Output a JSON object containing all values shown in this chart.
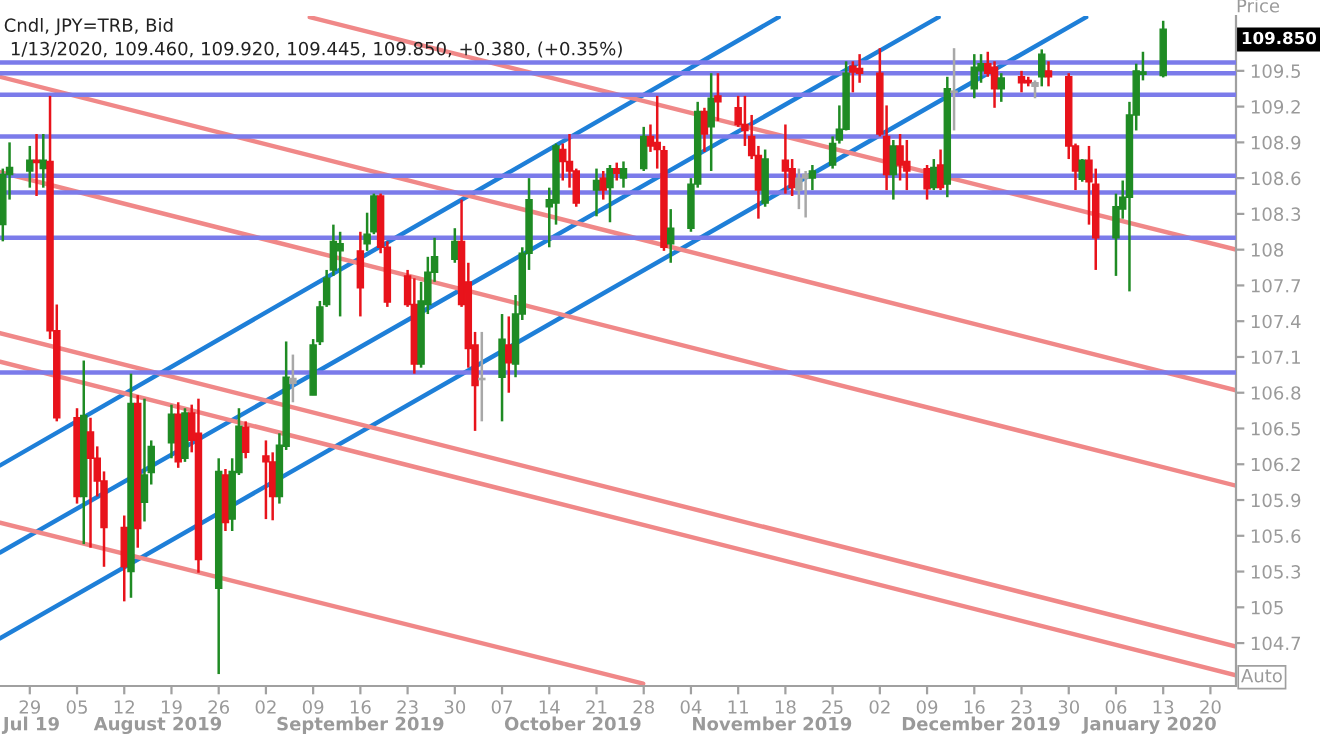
{
  "chart_data": {
    "type": "candlestick",
    "title": "Cndl, JPY=TRB, Bid",
    "subtitle": "1/13/2020, 109.460, 109.920, 109.445, 109.850, +0.380, (+0.35%)",
    "ylabel": "Price",
    "xlim": [
      "2019-07-24T14:00",
      "2020-01-23T19:00"
    ],
    "ylim": [
      104.34,
      109.96
    ],
    "yticks": [
      104.7,
      105,
      105.3,
      105.6,
      105.9,
      106.2,
      106.5,
      106.8,
      107.1,
      107.4,
      107.7,
      108,
      108.3,
      108.6,
      108.9,
      109.2,
      109.5
    ],
    "xticks": [
      {
        "value": "2019-07-29",
        "label": "29"
      },
      {
        "value": "2019-08-05",
        "label": "05"
      },
      {
        "value": "2019-08-12",
        "label": "12"
      },
      {
        "value": "2019-08-19",
        "label": "19"
      },
      {
        "value": "2019-08-26",
        "label": "26"
      },
      {
        "value": "2019-09-02",
        "label": "02"
      },
      {
        "value": "2019-09-09",
        "label": "09"
      },
      {
        "value": "2019-09-16",
        "label": "16"
      },
      {
        "value": "2019-09-23",
        "label": "23"
      },
      {
        "value": "2019-09-30",
        "label": "30"
      },
      {
        "value": "2019-10-07",
        "label": "07"
      },
      {
        "value": "2019-10-14",
        "label": "14"
      },
      {
        "value": "2019-10-21",
        "label": "21"
      },
      {
        "value": "2019-10-28",
        "label": "28"
      },
      {
        "value": "2019-11-04",
        "label": "04"
      },
      {
        "value": "2019-11-11",
        "label": "11"
      },
      {
        "value": "2019-11-18",
        "label": "18"
      },
      {
        "value": "2019-11-25",
        "label": "25"
      },
      {
        "value": "2019-12-02",
        "label": "02"
      },
      {
        "value": "2019-12-09",
        "label": "09"
      },
      {
        "value": "2019-12-16",
        "label": "16"
      },
      {
        "value": "2019-12-23",
        "label": "23"
      },
      {
        "value": "2019-12-30",
        "label": "30"
      },
      {
        "value": "2020-01-06",
        "label": "06"
      },
      {
        "value": "2020-01-13",
        "label": "13"
      },
      {
        "value": "2020-01-20",
        "label": "20"
      }
    ],
    "x2lim": [
      "2019-07-24T14:00",
      "2020-01-23T19:00"
    ],
    "x2ticks": [
      {
        "value": "2019-07-29T06:00",
        "label": "Jul 19"
      },
      {
        "value": "2019-08-17",
        "label": "August 2019"
      },
      {
        "value": "2019-09-16",
        "label": "September 2019"
      },
      {
        "value": "2019-10-17T12:00",
        "label": "October 2019"
      },
      {
        "value": "2019-11-16",
        "label": "November 2019"
      },
      {
        "value": "2019-12-17",
        "label": "December 2019"
      },
      {
        "value": "2020-01-11",
        "label": "January 2020"
      }
    ],
    "ref_lines": [
      {
        "axis": "y",
        "value": 109.57,
        "color": "#7b7bea"
      },
      {
        "axis": "y",
        "value": 109.48,
        "color": "#7b7bea"
      },
      {
        "axis": "y",
        "value": 109.3,
        "color": "#7b7bea"
      },
      {
        "axis": "y",
        "value": 108.95,
        "color": "#7b7bea"
      },
      {
        "axis": "y",
        "value": 108.62,
        "color": "#7b7bea"
      },
      {
        "axis": "y",
        "value": 108.48,
        "color": "#7b7bea"
      },
      {
        "axis": "y",
        "value": 108.1,
        "color": "#7b7bea"
      },
      {
        "axis": "y",
        "value": 106.97,
        "color": "#7b7bea"
      }
    ],
    "annotations": [
      "109.850",
      "Auto"
    ],
    "series": [
      {
        "type": "line",
        "color": "#1e7fd8",
        "x": [
          "2019-07-24T14:00",
          "2019-11-17"
        ],
        "values": [
          106.19,
          109.95
        ]
      },
      {
        "type": "line",
        "color": "#1e7fd8",
        "x": [
          "2019-07-24T14:00",
          "2019-12-10T17:00"
        ],
        "values": [
          105.46,
          109.95
        ]
      },
      {
        "type": "line",
        "color": "#1e7fd8",
        "x": [
          "2019-07-24T14:00",
          "2020-01-01T14:00"
        ],
        "values": [
          104.74,
          109.95
        ]
      },
      {
        "type": "line",
        "color": "#f08888",
        "x": [
          "2019-09-08T12:00",
          "2020-01-23T19:00"
        ],
        "values": [
          109.95,
          108.0
        ]
      },
      {
        "type": "line",
        "color": "#f08888",
        "x": [
          "2019-07-24T14:00",
          "2020-01-23T19:00"
        ],
        "values": [
          109.45,
          106.82
        ]
      },
      {
        "type": "line",
        "color": "#f08888",
        "x": [
          "2019-07-24T14:00",
          "2020-01-23T19:00"
        ],
        "values": [
          108.65,
          106.02
        ]
      },
      {
        "type": "line",
        "color": "#f08888",
        "x": [
          "2019-07-24T14:00",
          "2020-01-23T19:00"
        ],
        "values": [
          107.3,
          104.67
        ]
      },
      {
        "type": "line",
        "color": "#f08888",
        "x": [
          "2019-07-24T14:00",
          "2020-01-23T19:00"
        ],
        "values": [
          107.06,
          104.43
        ]
      },
      {
        "type": "line",
        "color": "#f08888",
        "x": [
          "2019-07-24T14:00",
          "2019-10-27T22:00"
        ],
        "values": [
          105.71,
          104.36
        ]
      },
      {
        "type": "candlestick",
        "x": [
          "2019-07-25",
          "2019-07-26",
          "2019-07-29",
          "2019-07-30",
          "2019-07-31",
          "2019-08-01",
          "2019-08-02",
          "2019-08-05",
          "2019-08-06",
          "2019-08-07",
          "2019-08-08",
          "2019-08-09",
          "2019-08-12",
          "2019-08-13",
          "2019-08-14",
          "2019-08-15",
          "2019-08-16",
          "2019-08-19",
          "2019-08-20",
          "2019-08-21",
          "2019-08-22",
          "2019-08-23",
          "2019-08-26",
          "2019-08-27",
          "2019-08-28",
          "2019-08-29",
          "2019-08-30",
          "2019-09-02",
          "2019-09-03",
          "2019-09-04",
          "2019-09-05",
          "2019-09-06",
          "2019-09-09",
          "2019-09-10",
          "2019-09-11",
          "2019-09-12",
          "2019-09-13",
          "2019-09-16",
          "2019-09-17",
          "2019-09-18",
          "2019-09-19",
          "2019-09-20",
          "2019-09-23",
          "2019-09-24",
          "2019-09-25",
          "2019-09-26",
          "2019-09-27",
          "2019-09-30",
          "2019-10-01",
          "2019-10-02",
          "2019-10-03",
          "2019-10-04",
          "2019-10-07",
          "2019-10-08",
          "2019-10-09",
          "2019-10-10",
          "2019-10-11",
          "2019-10-14",
          "2019-10-15",
          "2019-10-16",
          "2019-10-17",
          "2019-10-18",
          "2019-10-21",
          "2019-10-22",
          "2019-10-23",
          "2019-10-24",
          "2019-10-25",
          "2019-10-28",
          "2019-10-29",
          "2019-10-30",
          "2019-10-31",
          "2019-11-01",
          "2019-11-04",
          "2019-11-05",
          "2019-11-06",
          "2019-11-07",
          "2019-11-08",
          "2019-11-11",
          "2019-11-12",
          "2019-11-13",
          "2019-11-14",
          "2019-11-15",
          "2019-11-18",
          "2019-11-19",
          "2019-11-20",
          "2019-11-21",
          "2019-11-22",
          "2019-11-25",
          "2019-11-26",
          "2019-11-27",
          "2019-11-28",
          "2019-11-29",
          "2019-12-02",
          "2019-12-03",
          "2019-12-04",
          "2019-12-05",
          "2019-12-06",
          "2019-12-09",
          "2019-12-10",
          "2019-12-11",
          "2019-12-12",
          "2019-12-13",
          "2019-12-16",
          "2019-12-17",
          "2019-12-18",
          "2019-12-19",
          "2019-12-20",
          "2019-12-23",
          "2019-12-24",
          "2019-12-25",
          "2019-12-26",
          "2019-12-27",
          "2019-12-30",
          "2019-12-31",
          "2020-01-01",
          "2020-01-02",
          "2020-01-03",
          "2020-01-06",
          "2020-01-07",
          "2020-01-08",
          "2020-01-09",
          "2020-01-10",
          "2020-01-13"
        ],
        "ohlc": [
          [
            108.21,
            108.68,
            108.07,
            108.63
          ],
          [
            108.63,
            108.9,
            108.42,
            108.69
          ],
          [
            108.66,
            108.87,
            108.52,
            108.75
          ],
          [
            108.75,
            108.97,
            108.45,
            108.73
          ],
          [
            108.68,
            108.97,
            108.52,
            108.75
          ],
          [
            108.74,
            109.29,
            107.25,
            107.32
          ],
          [
            107.32,
            107.54,
            106.56,
            106.59
          ],
          [
            106.59,
            106.67,
            105.87,
            105.93
          ],
          [
            105.93,
            107.07,
            105.53,
            106.61
          ],
          [
            106.47,
            106.59,
            105.5,
            106.25
          ],
          [
            106.25,
            106.35,
            105.93,
            106.06
          ],
          [
            106.06,
            106.14,
            105.34,
            105.67
          ],
          [
            105.67,
            105.77,
            105.05,
            105.34
          ],
          [
            105.3,
            106.96,
            105.08,
            106.71
          ],
          [
            106.71,
            106.78,
            105.5,
            105.66
          ],
          [
            105.88,
            106.75,
            105.72,
            106.11
          ],
          [
            106.13,
            106.4,
            106.03,
            106.35
          ],
          [
            106.38,
            106.7,
            106.25,
            106.62
          ],
          [
            106.62,
            106.72,
            106.17,
            106.22
          ],
          [
            106.25,
            106.67,
            106.22,
            106.63
          ],
          [
            106.63,
            106.7,
            106.3,
            106.4
          ],
          [
            106.46,
            106.75,
            105.29,
            105.4
          ],
          [
            105.16,
            106.25,
            104.44,
            106.14
          ],
          [
            106.11,
            106.16,
            105.64,
            105.71
          ],
          [
            105.74,
            106.25,
            105.64,
            106.14
          ],
          [
            106.13,
            106.67,
            106.11,
            106.52
          ],
          [
            106.51,
            106.56,
            106.25,
            106.3
          ],
          [
            106.27,
            106.4,
            105.74,
            106.22
          ],
          [
            106.22,
            106.3,
            105.73,
            105.93
          ],
          [
            105.93,
            106.46,
            105.87,
            106.36
          ],
          [
            106.35,
            107.23,
            106.32,
            106.93
          ],
          [
            106.88,
            107.12,
            106.72,
            106.92
          ],
          [
            106.78,
            107.25,
            106.78,
            107.2
          ],
          [
            107.23,
            107.57,
            107.2,
            107.52
          ],
          [
            107.54,
            107.83,
            107.52,
            107.76
          ],
          [
            107.83,
            108.21,
            107.78,
            108.07
          ],
          [
            107.99,
            108.15,
            107.44,
            108.05
          ],
          [
            107.99,
            108.15,
            107.44,
            107.68
          ],
          [
            108.05,
            108.31,
            107.99,
            108.13
          ],
          [
            108.15,
            108.47,
            108.13,
            108.45
          ],
          [
            108.45,
            108.47,
            107.97,
            108.02
          ],
          [
            108.02,
            108.07,
            107.52,
            107.56
          ],
          [
            107.78,
            107.83,
            107.52,
            107.54
          ],
          [
            107.54,
            107.76,
            106.96,
            107.04
          ],
          [
            107.04,
            107.73,
            107.01,
            107.57
          ],
          [
            107.54,
            107.94,
            107.46,
            107.81
          ],
          [
            107.81,
            108.1,
            107.73,
            107.94
          ],
          [
            107.92,
            108.18,
            107.89,
            108.07
          ],
          [
            108.07,
            108.42,
            107.52,
            107.54
          ],
          [
            107.73,
            107.89,
            107.01,
            107.17
          ],
          [
            107.2,
            107.31,
            106.48,
            106.86
          ],
          [
            106.92,
            107.31,
            106.56,
            106.91
          ],
          [
            106.93,
            107.46,
            106.56,
            107.25
          ],
          [
            107.2,
            107.44,
            106.8,
            107.05
          ],
          [
            107.04,
            107.62,
            106.93,
            107.46
          ],
          [
            107.46,
            108.02,
            107.41,
            107.97
          ],
          [
            107.97,
            108.6,
            107.83,
            108.42
          ],
          [
            108.36,
            108.52,
            108.02,
            108.42
          ],
          [
            108.39,
            108.89,
            108.21,
            108.87
          ],
          [
            108.84,
            108.89,
            108.58,
            108.74
          ],
          [
            108.74,
            108.97,
            108.52,
            108.66
          ],
          [
            108.66,
            108.68,
            108.36,
            108.39
          ],
          [
            108.5,
            108.68,
            108.28,
            108.58
          ],
          [
            108.6,
            108.66,
            108.42,
            108.5
          ],
          [
            108.52,
            108.71,
            108.23,
            108.68
          ],
          [
            108.68,
            108.73,
            108.58,
            108.64
          ],
          [
            108.6,
            108.74,
            108.52,
            108.68
          ],
          [
            108.68,
            109.03,
            108.66,
            108.95
          ],
          [
            108.95,
            109.05,
            108.82,
            108.87
          ],
          [
            108.9,
            109.29,
            108.68,
            108.84
          ],
          [
            108.83,
            108.87,
            107.99,
            108.02
          ],
          [
            108.05,
            108.34,
            107.89,
            108.18
          ],
          [
            108.18,
            108.6,
            108.15,
            108.55
          ],
          [
            108.55,
            109.24,
            108.52,
            109.16
          ],
          [
            109.16,
            109.19,
            108.82,
            108.97
          ],
          [
            109.03,
            109.48,
            108.66,
            109.27
          ],
          [
            109.29,
            109.48,
            109.08,
            109.24
          ],
          [
            109.19,
            109.29,
            109.03,
            109.05
          ],
          [
            109.05,
            109.29,
            108.87,
            109.0
          ],
          [
            108.95,
            109.13,
            108.76,
            108.79
          ],
          [
            108.79,
            108.87,
            108.26,
            108.5
          ],
          [
            108.39,
            108.84,
            108.36,
            108.76
          ],
          [
            108.75,
            109.05,
            108.47,
            108.66
          ],
          [
            108.68,
            108.76,
            108.45,
            108.52
          ],
          [
            108.5,
            108.68,
            108.34,
            108.6
          ],
          [
            108.63,
            108.66,
            108.27,
            108.6
          ],
          [
            108.6,
            108.71,
            108.5,
            108.66
          ],
          [
            108.71,
            108.95,
            108.68,
            108.89
          ],
          [
            108.92,
            109.21,
            108.89,
            109.01
          ],
          [
            109.01,
            109.58,
            109.0,
            109.48
          ],
          [
            109.54,
            109.58,
            109.32,
            109.49
          ],
          [
            109.52,
            109.64,
            109.4,
            109.48
          ],
          [
            109.48,
            109.69,
            108.95,
            108.97
          ],
          [
            108.95,
            109.21,
            108.5,
            108.63
          ],
          [
            108.63,
            108.92,
            108.42,
            108.87
          ],
          [
            108.87,
            108.97,
            108.58,
            108.71
          ],
          [
            108.74,
            108.92,
            108.5,
            108.66
          ],
          [
            108.68,
            108.71,
            108.42,
            108.51
          ],
          [
            108.52,
            108.76,
            108.5,
            108.69
          ],
          [
            108.71,
            108.84,
            108.5,
            108.52
          ],
          [
            108.55,
            109.45,
            108.44,
            109.35
          ],
          [
            109.32,
            109.69,
            109.0,
            109.33
          ],
          [
            109.35,
            109.64,
            109.27,
            109.53
          ],
          [
            109.5,
            109.64,
            109.4,
            109.56
          ],
          [
            109.56,
            109.66,
            109.45,
            109.48
          ],
          [
            109.53,
            109.58,
            109.19,
            109.35
          ],
          [
            109.35,
            109.48,
            109.24,
            109.44
          ],
          [
            109.45,
            109.5,
            109.32,
            109.4
          ],
          [
            109.42,
            109.45,
            109.37,
            109.4
          ],
          [
            109.4,
            109.42,
            109.27,
            109.37
          ],
          [
            109.45,
            109.68,
            109.37,
            109.64
          ],
          [
            109.5,
            109.58,
            109.37,
            109.45
          ],
          [
            109.45,
            109.48,
            108.76,
            108.87
          ],
          [
            108.87,
            108.89,
            108.5,
            108.66
          ],
          [
            108.59,
            108.76,
            108.57,
            108.75
          ],
          [
            108.75,
            108.87,
            108.21,
            108.57
          ],
          [
            108.55,
            108.68,
            107.83,
            108.1
          ],
          [
            108.1,
            108.47,
            107.78,
            108.36
          ],
          [
            108.34,
            108.58,
            108.26,
            108.44
          ],
          [
            108.44,
            109.24,
            107.65,
            109.13
          ],
          [
            109.13,
            109.56,
            109.0,
            109.5
          ],
          [
            109.47,
            109.66,
            109.42,
            109.49
          ],
          [
            109.46,
            109.92,
            109.445,
            109.85
          ]
        ],
        "colors": [
          "#1f8b24",
          "#1f8b24",
          "#1f8b24",
          "#e8131b",
          "#1f8b24",
          "#e8131b",
          "#e8131b",
          "#e8131b",
          "#1f8b24",
          "#e8131b",
          "#e8131b",
          "#e8131b",
          "#e8131b",
          "#1f8b24",
          "#e8131b",
          "#1f8b24",
          "#1f8b24",
          "#1f8b24",
          "#e8131b",
          "#1f8b24",
          "#e8131b",
          "#e8131b",
          "#1f8b24",
          "#e8131b",
          "#1f8b24",
          "#1f8b24",
          "#e8131b",
          "#e8131b",
          "#e8131b",
          "#1f8b24",
          "#1f8b24",
          "#a8a8a8",
          "#1f8b24",
          "#1f8b24",
          "#1f8b24",
          "#1f8b24",
          "#1f8b24",
          "#e8131b",
          "#1f8b24",
          "#1f8b24",
          "#e8131b",
          "#e8131b",
          "#e8131b",
          "#e8131b",
          "#1f8b24",
          "#1f8b24",
          "#1f8b24",
          "#1f8b24",
          "#e8131b",
          "#e8131b",
          "#e8131b",
          "#a8a8a8",
          "#1f8b24",
          "#e8131b",
          "#1f8b24",
          "#1f8b24",
          "#1f8b24",
          "#1f8b24",
          "#1f8b24",
          "#e8131b",
          "#e8131b",
          "#e8131b",
          "#1f8b24",
          "#e8131b",
          "#1f8b24",
          "#e8131b",
          "#1f8b24",
          "#1f8b24",
          "#e8131b",
          "#e8131b",
          "#e8131b",
          "#1f8b24",
          "#1f8b24",
          "#1f8b24",
          "#e8131b",
          "#1f8b24",
          "#e8131b",
          "#e8131b",
          "#e8131b",
          "#e8131b",
          "#e8131b",
          "#1f8b24",
          "#e8131b",
          "#e8131b",
          "#a8a8a8",
          "#a8a8a8",
          "#1f8b24",
          "#1f8b24",
          "#1f8b24",
          "#1f8b24",
          "#e8131b",
          "#e8131b",
          "#e8131b",
          "#e8131b",
          "#1f8b24",
          "#e8131b",
          "#e8131b",
          "#e8131b",
          "#1f8b24",
          "#e8131b",
          "#1f8b24",
          "#a8a8a8",
          "#1f8b24",
          "#1f8b24",
          "#e8131b",
          "#e8131b",
          "#1f8b24",
          "#e8131b",
          "#e8131b",
          "#a8a8a8",
          "#1f8b24",
          "#e8131b",
          "#e8131b",
          "#e8131b",
          "#1f8b24",
          "#e8131b",
          "#e8131b",
          "#1f8b24",
          "#1f8b24",
          "#1f8b24",
          "#1f8b24",
          "#1f8b24",
          "#1f8b24"
        ]
      }
    ]
  }
}
